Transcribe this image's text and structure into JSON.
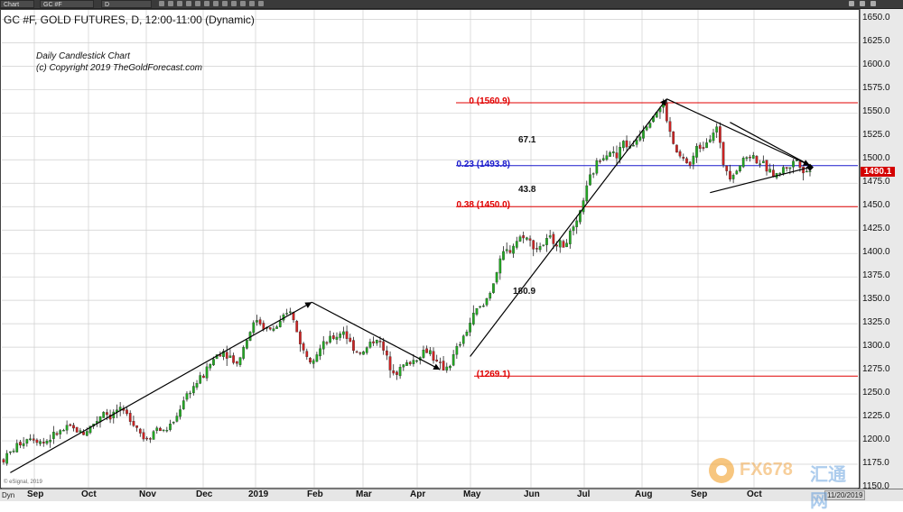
{
  "topbar": {
    "tab1": "Chart",
    "symbol_field": "GC #F",
    "interval_field": "D"
  },
  "header": {
    "title": "GC #F, GOLD FUTURES, D, 12:00-11:00 (Dynamic)",
    "subtitle1": "Daily Candlestick Chart",
    "subtitle2": "(c) Copyright 2019 TheGoldForecast.com"
  },
  "price_label": "1490.1",
  "date_label": "11/20/2019",
  "bottom_left": "Dyn",
  "copyright_small": "© eSignal, 2019",
  "watermark": {
    "text": "FX678",
    "cn": "汇通网"
  },
  "colors": {
    "up": "#22a822",
    "down": "#cc2222",
    "fib_red": "#e00000",
    "fib_blue": "#1a1acc",
    "trend": "#000000"
  },
  "chart_data": {
    "type": "candlestick",
    "ylim": [
      1150,
      1660
    ],
    "yticks": [
      "1650.0",
      "1625.0",
      "1600.0",
      "1575.0",
      "1550.0",
      "1525.0",
      "1500.0",
      "1475.0",
      "1450.0",
      "1425.0",
      "1400.0",
      "1375.0",
      "1350.0",
      "1325.0",
      "1300.0",
      "1275.0",
      "1250.0",
      "1225.0",
      "1200.0",
      "1175.0",
      "1150.0"
    ],
    "xticks": [
      "Sep",
      "Oct",
      "Nov",
      "Dec",
      "2019",
      "Feb",
      "Mar",
      "Apr",
      "May",
      "Jun",
      "Jul",
      "Aug",
      "Sep",
      "Oct"
    ],
    "fib_levels": [
      {
        "label": "0 (1560.9)",
        "value": 1560.9,
        "color": "red"
      },
      {
        "label": "0.23 (1493.8)",
        "value": 1493.8,
        "color": "blue"
      },
      {
        "label": "0.38 (1450.0)",
        "value": 1450.0,
        "color": "red"
      },
      {
        "label": "(1269.1)",
        "value": 1269.1,
        "color": "red"
      }
    ],
    "annotations": [
      "67.1",
      "43.8",
      "180.9"
    ],
    "path": [
      [
        0,
        1180
      ],
      [
        8,
        1195
      ],
      [
        16,
        1205
      ],
      [
        24,
        1198
      ],
      [
        32,
        1208
      ],
      [
        40,
        1214
      ],
      [
        48,
        1208
      ],
      [
        56,
        1222
      ],
      [
        60,
        1232
      ],
      [
        64,
        1226
      ],
      [
        68,
        1233
      ],
      [
        72,
        1229
      ],
      [
        76,
        1225
      ],
      [
        80,
        1215
      ],
      [
        84,
        1203
      ],
      [
        88,
        1206
      ],
      [
        92,
        1214
      ],
      [
        96,
        1210
      ],
      [
        100,
        1216
      ],
      [
        104,
        1226
      ],
      [
        108,
        1245
      ],
      [
        112,
        1254
      ],
      [
        116,
        1262
      ],
      [
        120,
        1270
      ],
      [
        124,
        1282
      ],
      [
        128,
        1292
      ],
      [
        132,
        1296
      ],
      [
        136,
        1290
      ],
      [
        140,
        1282
      ],
      [
        144,
        1300
      ],
      [
        148,
        1318
      ],
      [
        152,
        1330
      ],
      [
        156,
        1322
      ],
      [
        160,
        1318
      ],
      [
        164,
        1322
      ],
      [
        168,
        1330
      ],
      [
        172,
        1340
      ],
      [
        176,
        1316
      ],
      [
        180,
        1296
      ],
      [
        184,
        1288
      ],
      [
        188,
        1294
      ],
      [
        192,
        1302
      ],
      [
        196,
        1308
      ],
      [
        200,
        1312
      ],
      [
        204,
        1318
      ],
      [
        208,
        1304
      ],
      [
        212,
        1296
      ],
      [
        216,
        1294
      ],
      [
        220,
        1304
      ],
      [
        224,
        1310
      ],
      [
        228,
        1296
      ],
      [
        232,
        1280
      ],
      [
        236,
        1274
      ],
      [
        240,
        1280
      ],
      [
        244,
        1284
      ],
      [
        248,
        1288
      ],
      [
        252,
        1296
      ],
      [
        256,
        1296
      ],
      [
        260,
        1282
      ],
      [
        264,
        1278
      ],
      [
        268,
        1282
      ],
      [
        272,
        1298
      ],
      [
        276,
        1310
      ],
      [
        280,
        1326
      ],
      [
        284,
        1340
      ],
      [
        288,
        1344
      ],
      [
        292,
        1360
      ],
      [
        296,
        1380
      ],
      [
        300,
        1400
      ],
      [
        304,
        1404
      ],
      [
        308,
        1414
      ],
      [
        312,
        1420
      ],
      [
        316,
        1412
      ],
      [
        320,
        1406
      ],
      [
        324,
        1410
      ],
      [
        328,
        1416
      ],
      [
        332,
        1412
      ],
      [
        336,
        1408
      ],
      [
        340,
        1420
      ],
      [
        344,
        1430
      ],
      [
        348,
        1458
      ],
      [
        352,
        1480
      ],
      [
        356,
        1496
      ],
      [
        360,
        1506
      ],
      [
        364,
        1510
      ],
      [
        368,
        1502
      ],
      [
        372,
        1520
      ],
      [
        376,
        1512
      ],
      [
        380,
        1522
      ],
      [
        384,
        1534
      ],
      [
        388,
        1544
      ],
      [
        392,
        1552
      ],
      [
        396,
        1558
      ],
      [
        400,
        1528
      ],
      [
        404,
        1506
      ],
      [
        408,
        1500
      ],
      [
        412,
        1494
      ],
      [
        416,
        1512
      ],
      [
        420,
        1516
      ],
      [
        424,
        1526
      ],
      [
        428,
        1534
      ],
      [
        432,
        1496
      ],
      [
        436,
        1484
      ],
      [
        440,
        1490
      ],
      [
        444,
        1500
      ],
      [
        448,
        1506
      ],
      [
        452,
        1500
      ],
      [
        456,
        1494
      ],
      [
        460,
        1486
      ],
      [
        464,
        1484
      ],
      [
        468,
        1490
      ],
      [
        472,
        1494
      ],
      [
        476,
        1500
      ],
      [
        480,
        1490
      ],
      [
        484,
        1487
      ]
    ],
    "x_domain": [
      0,
      484
    ]
  }
}
